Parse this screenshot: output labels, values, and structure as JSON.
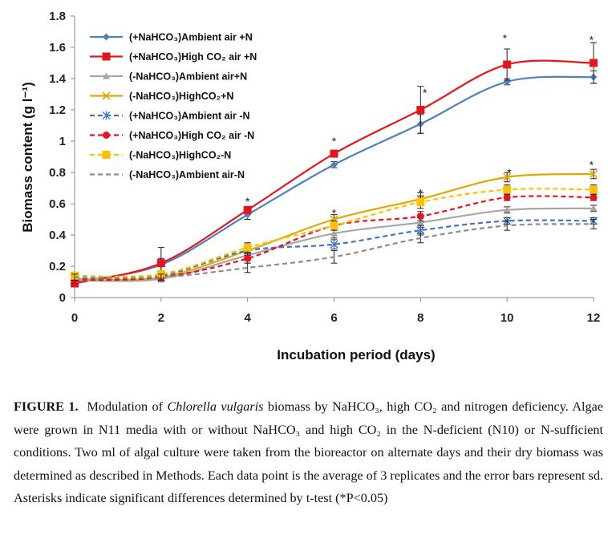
{
  "chart_data": {
    "type": "line",
    "xlabel": "Incubation period (days)",
    "ylabel": "Biomass content (g l⁻¹)",
    "xlim": [
      0,
      12
    ],
    "ylim": [
      0,
      1.8
    ],
    "x_ticks": [
      "0",
      "2",
      "4",
      "6",
      "8",
      "10",
      "12"
    ],
    "y_ticks": [
      "0",
      "0.2",
      "0.4",
      "0.6",
      "0.8",
      "1",
      "1.2",
      "1.4",
      "1.6",
      "1.8"
    ],
    "x": [
      0,
      2,
      4,
      6,
      8,
      10,
      12
    ],
    "grid": false,
    "legend_position": "top-left",
    "series": [
      {
        "name": "(+NaHCO₃)Ambient air +N",
        "color": "#4F81BD",
        "dash": "solid",
        "marker": "diamond",
        "values": [
          0.1,
          0.21,
          0.53,
          0.85,
          1.11,
          1.38,
          1.41
        ],
        "err": [
          0.02,
          0.04,
          0.03,
          0.02,
          0.06,
          0.02,
          0.04
        ]
      },
      {
        "name": "(+NaHCO₃)High  CO₂ air +N",
        "color": "#E8141B",
        "dash": "solid",
        "marker": "square",
        "values": [
          0.09,
          0.22,
          0.56,
          0.92,
          1.2,
          1.49,
          1.5
        ],
        "err": [
          0.02,
          0.1,
          0.02,
          0.02,
          0.15,
          0.1,
          0.13
        ]
      },
      {
        "name": "(-NaHCO₃)Ambient air+N",
        "color": "#A6A6A6",
        "dash": "solid",
        "marker": "triangle",
        "values": [
          0.11,
          0.12,
          0.27,
          0.41,
          0.48,
          0.56,
          0.57
        ],
        "err": [
          0.02,
          0.02,
          0.03,
          0.03,
          0.03,
          0.02,
          0.02
        ]
      },
      {
        "name": "(-NaHCO₃)HighCO₂+N",
        "color": "#E0A800",
        "dash": "solid",
        "marker": "x",
        "values": [
          0.12,
          0.13,
          0.3,
          0.5,
          0.63,
          0.77,
          0.79
        ],
        "err": [
          0.02,
          0.02,
          0.03,
          0.03,
          0.04,
          0.03,
          0.03
        ]
      },
      {
        "name": "(+NaHCO₃)Ambient air -N",
        "color": "#4472C4",
        "dash": "dashed",
        "marker": "asterisk",
        "values": [
          0.12,
          0.14,
          0.3,
          0.34,
          0.43,
          0.49,
          0.49
        ],
        "err": [
          0.02,
          0.02,
          0.03,
          0.03,
          0.03,
          0.02,
          0.02
        ]
      },
      {
        "name": "(+NaHCO₃)High  CO₂ air -N",
        "color": "#E8141B",
        "dash": "dashed",
        "marker": "circle",
        "values": [
          0.11,
          0.13,
          0.25,
          0.46,
          0.52,
          0.64,
          0.64
        ],
        "err": [
          0.02,
          0.02,
          0.03,
          0.03,
          0.03,
          0.02,
          0.02
        ]
      },
      {
        "name": "(-NaHCO₃)HighCO₂-N",
        "color": "#FFC000",
        "dash": "dashed",
        "marker": "square",
        "values": [
          0.14,
          0.15,
          0.32,
          0.46,
          0.61,
          0.69,
          0.69
        ],
        "err": [
          0.02,
          0.02,
          0.03,
          0.03,
          0.04,
          0.03,
          0.03
        ]
      },
      {
        "name": "(-NaHCO₃)Ambient air-N",
        "color": "#8C8C8C",
        "dash": "dashed",
        "marker": "none",
        "values": [
          0.13,
          0.13,
          0.19,
          0.26,
          0.38,
          0.46,
          0.47
        ],
        "err": [
          0.02,
          0.02,
          0.03,
          0.04,
          0.03,
          0.03,
          0.03
        ]
      }
    ],
    "annotations": [
      {
        "text": "*",
        "x": 4,
        "y": 0.615
      },
      {
        "text": "*",
        "x": 6,
        "y": 1.0
      },
      {
        "text": "*",
        "x": 6,
        "y": 0.54
      },
      {
        "text": "*",
        "x": 8.1,
        "y": 1.31
      },
      {
        "text": "*",
        "x": 8,
        "y": 0.67
      },
      {
        "text": "*",
        "x": 9.95,
        "y": 1.66
      },
      {
        "text": "*",
        "x": 10.05,
        "y": 0.8
      },
      {
        "text": "*",
        "x": 11.95,
        "y": 1.65
      },
      {
        "text": "*",
        "x": 11.95,
        "y": 0.85
      }
    ]
  },
  "caption": {
    "label": "FIGURE 1.",
    "text_before_species": "Modulation of",
    "species": "Chlorella vulgaris",
    "text_after_species": "biomass by NaHCO₃, high CO₂  and nitrogen deficiency. Algae were grown in N11 media with or without NaHCO₃ and high CO₂ in the N-deficient (N10) or N-sufficient conditions. Two ml of algal culture were taken  from the bioreactor on alternate days and their dry biomass  was determined  as described in Methods. Each data point is the average of 3 replicates  and the error bars represent sd. Asterisks indicate significant differences  determined by t-test (*P<0.05)"
  }
}
